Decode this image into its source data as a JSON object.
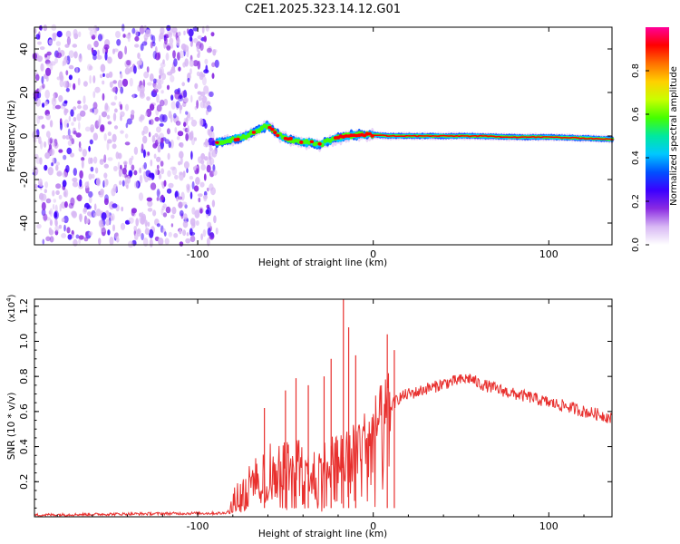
{
  "chart_data": [
    {
      "type": "heatmap",
      "title": "C2E1.2025.323.14.12.G01",
      "xlabel": "Height of straight line (km)",
      "ylabel": "Frequency (Hz)",
      "xlim": [
        -193,
        136
      ],
      "ylim": [
        -50,
        50
      ],
      "x_ticks": [
        -100,
        0,
        100
      ],
      "x_tick_labels": [
        "-100",
        "0",
        "100"
      ],
      "y_ticks": [
        -40,
        -20,
        0,
        20,
        40
      ],
      "y_tick_labels": [
        "-40",
        "-20",
        "0",
        "20",
        "40"
      ],
      "noise_region_x": [
        -193,
        -89
      ],
      "signal_start_x": -89,
      "ridge": {
        "x": [
          -89,
          -82,
          -75,
          -70,
          -65,
          -60,
          -55,
          -50,
          -45,
          -40,
          -35,
          -30,
          -25,
          -20,
          -15,
          -10,
          -5,
          0,
          10,
          20,
          40,
          60,
          80,
          100,
          120,
          136
        ],
        "freq": [
          -3,
          -2,
          -1,
          1,
          3,
          5,
          1,
          -1,
          -2,
          -3,
          -3,
          -4,
          -2,
          -1,
          0,
          0.5,
          0.5,
          0.5,
          0,
          0,
          0,
          0,
          -0.5,
          -0.5,
          -1,
          -1.5
        ]
      },
      "colorbar": {
        "label": "Normalized spectral amplitude",
        "range": [
          0,
          1
        ],
        "ticks": [
          0.0,
          0.2,
          0.4,
          0.6,
          0.8
        ],
        "tick_labels": [
          "0.0",
          "0.2",
          "0.4",
          "0.6",
          "0.8"
        ],
        "colors": [
          "#ffffff",
          "#d8b8f4",
          "#8a2be2",
          "#3b00ff",
          "#0050ff",
          "#00c8ff",
          "#00e8a0",
          "#44ff00",
          "#c8ff00",
          "#ffd000",
          "#ff7000",
          "#ff0000",
          "#ff0099"
        ]
      }
    },
    {
      "type": "line",
      "xlabel": "Height of straight line (km)",
      "ylabel": "SNR (10 * v/v)",
      "scale_label_base": "(x10",
      "scale_label_exp": "4",
      "scale_label_end": ")",
      "xlim": [
        -193,
        136
      ],
      "ylim": [
        0,
        1.24
      ],
      "x_ticks": [
        -100,
        0,
        100
      ],
      "x_tick_labels": [
        "-100",
        "0",
        "100"
      ],
      "y_ticks": [
        0.2,
        0.4,
        0.6,
        0.8,
        1.0,
        1.2
      ],
      "y_tick_labels": [
        "0.2",
        "0.4",
        "0.6",
        "0.8",
        "1.0",
        "1.2"
      ],
      "line_color": "#e8302e",
      "series": [
        {
          "name": "SNR",
          "x": [
            -193,
            -150,
            -100,
            -85,
            -81,
            -78,
            -72,
            -65,
            -58,
            -50,
            -44,
            -38,
            -30,
            -25,
            -18,
            -15,
            -10,
            -5,
            0,
            5,
            8,
            10,
            15,
            20,
            25,
            30,
            35,
            40,
            45,
            50,
            55,
            60,
            70,
            80,
            90,
            100,
            110,
            120,
            130,
            136
          ],
          "y": [
            0.01,
            0.015,
            0.02,
            0.02,
            0.04,
            0.12,
            0.18,
            0.25,
            0.3,
            0.3,
            0.32,
            0.33,
            0.28,
            0.35,
            0.35,
            0.4,
            0.42,
            0.45,
            0.52,
            0.58,
            0.62,
            0.63,
            0.68,
            0.7,
            0.71,
            0.73,
            0.74,
            0.76,
            0.77,
            0.78,
            0.79,
            0.76,
            0.73,
            0.7,
            0.68,
            0.65,
            0.63,
            0.6,
            0.58,
            0.56
          ]
        }
      ],
      "spikes": [
        {
          "x": -62,
          "y": 0.62
        },
        {
          "x": -50,
          "y": 0.72
        },
        {
          "x": -44,
          "y": 0.79
        },
        {
          "x": -37,
          "y": 0.75
        },
        {
          "x": -28,
          "y": 0.8
        },
        {
          "x": -24,
          "y": 0.9
        },
        {
          "x": -17,
          "y": 1.24
        },
        {
          "x": -14,
          "y": 1.08
        },
        {
          "x": -10,
          "y": 0.92
        },
        {
          "x": 8,
          "y": 1.04
        },
        {
          "x": 12,
          "y": 0.95
        }
      ]
    }
  ]
}
